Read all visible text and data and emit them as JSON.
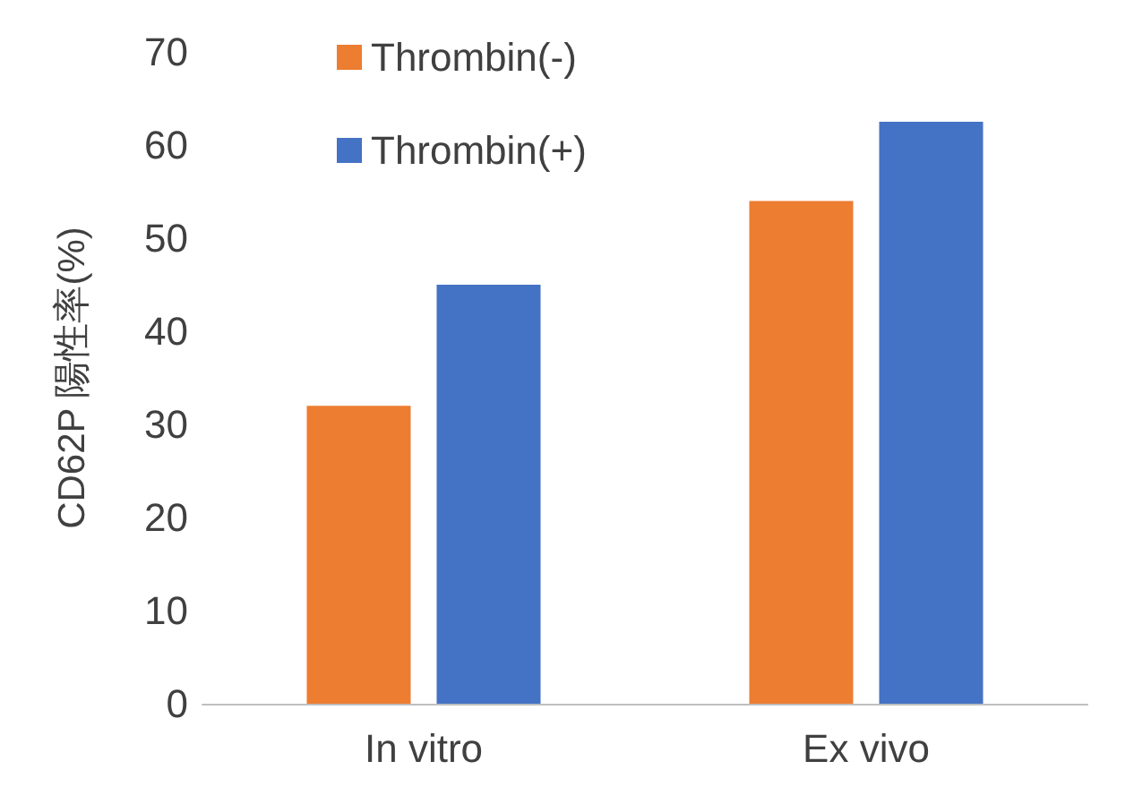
{
  "chart_data": {
    "type": "bar",
    "ylabel": "CD62P 陽性率(%)",
    "categories": [
      "In vitro",
      "Ex vivo"
    ],
    "series": [
      {
        "name": "Thrombin(-)",
        "color": "#ed7d31",
        "values": [
          32,
          54
        ]
      },
      {
        "name": "Thrombin(+)",
        "color": "#4472c4",
        "values": [
          45,
          62.5
        ]
      }
    ],
    "ylim": [
      0,
      70
    ],
    "yticks": [
      0,
      10,
      20,
      30,
      40,
      50,
      60,
      70
    ],
    "grid": false,
    "legend": "top"
  }
}
